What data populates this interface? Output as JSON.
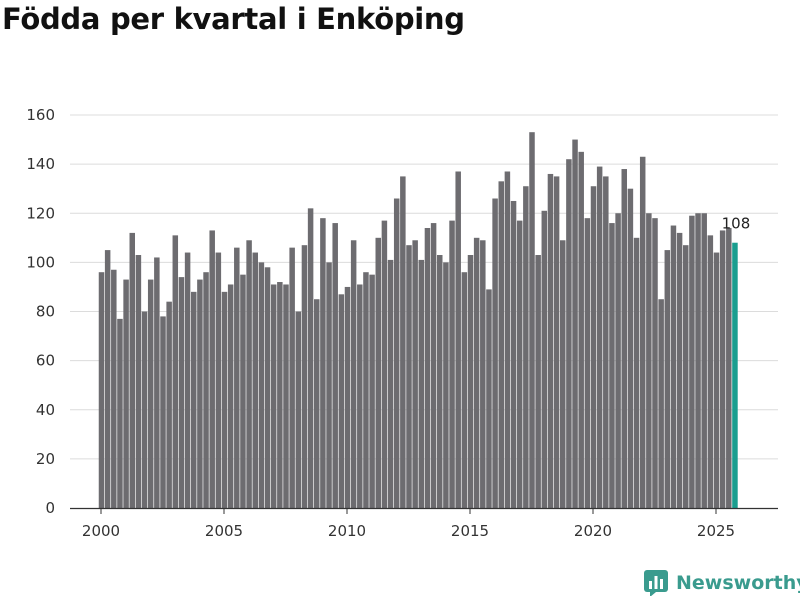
{
  "title": "Födda per kvartal i Enköping",
  "brand": {
    "name": "Newsworthy",
    "color": "#3a9b8e"
  },
  "colors": {
    "bar": "#6d6c70",
    "highlight": "#1a9e8f",
    "grid": "#dcdcdc",
    "axis": "#333333"
  },
  "chart_data": {
    "type": "bar",
    "title": "Födda per kvartal i Enköping",
    "xlabel": "",
    "ylabel": "",
    "ylim": [
      0,
      160
    ],
    "yticks": [
      0,
      20,
      40,
      60,
      80,
      100,
      120,
      140,
      160
    ],
    "xticks": [
      2000,
      2005,
      2010,
      2015,
      2020,
      2025
    ],
    "grid": true,
    "start": {
      "year": 2000,
      "quarter": 1
    },
    "highlight_last": true,
    "last_value_label": "108",
    "values": [
      96,
      105,
      97,
      77,
      93,
      112,
      103,
      80,
      93,
      102,
      78,
      84,
      111,
      94,
      104,
      88,
      93,
      96,
      113,
      104,
      88,
      91,
      106,
      95,
      109,
      104,
      100,
      98,
      91,
      92,
      91,
      106,
      80,
      107,
      122,
      85,
      118,
      100,
      116,
      87,
      90,
      109,
      91,
      96,
      95,
      110,
      117,
      101,
      126,
      135,
      107,
      109,
      101,
      114,
      116,
      103,
      100,
      117,
      137,
      96,
      103,
      110,
      109,
      89,
      126,
      133,
      137,
      125,
      117,
      131,
      153,
      103,
      121,
      136,
      135,
      109,
      142,
      150,
      145,
      118,
      131,
      139,
      135,
      116,
      120,
      138,
      130,
      110,
      143,
      120,
      118,
      85,
      105,
      115,
      112,
      107,
      119,
      120,
      120,
      111,
      104,
      113,
      114,
      108
    ]
  }
}
